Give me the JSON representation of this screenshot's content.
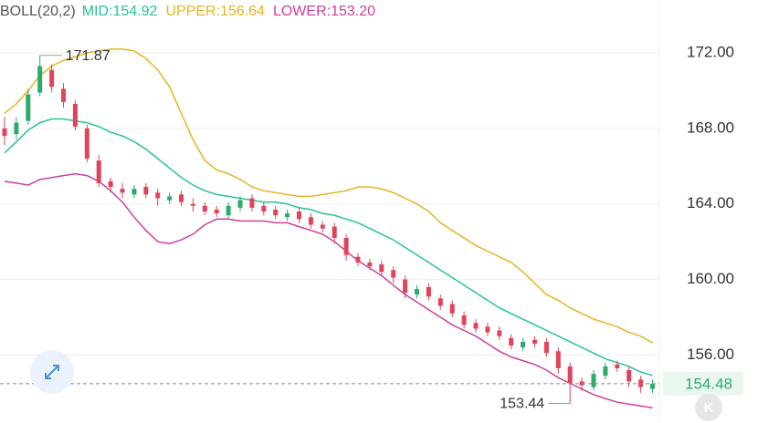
{
  "chart_data": {
    "type": "candlestick",
    "indicator": "BOLL(20,2)",
    "open": [
      168.0,
      167.7,
      168.4,
      169.9,
      171.1,
      170.1,
      169.3,
      168.0,
      166.3,
      165.2,
      164.8,
      164.5,
      164.9,
      164.6,
      164.2,
      164.5,
      164.0,
      163.9,
      163.7,
      163.4,
      163.8,
      164.3,
      163.9,
      163.7,
      163.3,
      163.6,
      163.3,
      162.9,
      162.8,
      162.2,
      161.2,
      160.9,
      160.8,
      160.5,
      160.0,
      159.2,
      159.6,
      159.0,
      158.7,
      158.1,
      157.7,
      157.5,
      157.3,
      156.9,
      156.4,
      156.8,
      156.7,
      156.2,
      155.4,
      154.6,
      154.3,
      154.9,
      155.5,
      155.2,
      154.7,
      154.2
    ],
    "high": [
      168.6,
      168.6,
      170.1,
      171.87,
      171.4,
      170.4,
      169.5,
      168.2,
      166.6,
      165.4,
      165.1,
      165.0,
      165.1,
      164.8,
      164.6,
      164.7,
      164.3,
      164.1,
      163.9,
      164.1,
      164.4,
      164.5,
      164.1,
      163.9,
      163.7,
      163.8,
      163.5,
      163.1,
      163.0,
      162.4,
      161.4,
      161.1,
      161.0,
      160.7,
      160.2,
      159.7,
      159.8,
      159.2,
      158.9,
      158.3,
      157.9,
      157.7,
      157.5,
      157.1,
      156.9,
      157.0,
      156.9,
      156.4,
      155.6,
      154.8,
      155.2,
      155.6,
      155.7,
      155.4,
      154.9,
      154.7
    ],
    "low": [
      167.1,
      167.4,
      168.2,
      169.7,
      169.9,
      169.1,
      167.9,
      166.2,
      164.9,
      164.6,
      164.3,
      164.3,
      164.3,
      163.9,
      164.0,
      163.9,
      163.6,
      163.4,
      163.3,
      163.2,
      163.6,
      163.6,
      163.4,
      163.2,
      163.1,
      163.0,
      162.7,
      162.5,
      161.9,
      161.0,
      160.7,
      160.5,
      160.2,
      159.8,
      159.0,
      159.0,
      158.9,
      158.4,
      158.0,
      157.4,
      157.2,
      157.0,
      156.8,
      156.3,
      156.2,
      156.4,
      155.9,
      155.0,
      153.44,
      154.1,
      154.1,
      154.7,
      155.1,
      154.3,
      154.0,
      154.0
    ],
    "close": [
      167.6,
      168.3,
      169.8,
      171.3,
      170.2,
      169.4,
      168.1,
      166.4,
      165.1,
      164.9,
      164.6,
      164.8,
      164.5,
      164.3,
      164.4,
      164.1,
      163.9,
      163.6,
      163.5,
      163.9,
      164.2,
      163.8,
      163.6,
      163.4,
      163.5,
      163.2,
      162.9,
      162.7,
      162.2,
      161.3,
      160.9,
      160.7,
      160.4,
      160.1,
      159.3,
      159.5,
      159.1,
      158.6,
      158.2,
      157.6,
      157.4,
      157.2,
      157.0,
      156.5,
      156.7,
      156.6,
      156.1,
      155.3,
      154.5,
      154.4,
      155.0,
      155.4,
      155.3,
      154.6,
      154.3,
      154.48
    ],
    "up_color": "#2eaa6a",
    "down_color": "#e0435a",
    "series": [
      {
        "name": "MID:154.92",
        "color": "#27c29c",
        "values": [
          166.7,
          167.3,
          167.9,
          168.3,
          168.5,
          168.5,
          168.4,
          168.3,
          168.1,
          167.8,
          167.6,
          167.3,
          166.9,
          166.4,
          165.9,
          165.4,
          165.0,
          164.7,
          164.5,
          164.4,
          164.3,
          164.2,
          164.1,
          164.1,
          164.0,
          163.8,
          163.7,
          163.5,
          163.4,
          163.2,
          163.0,
          162.7,
          162.4,
          162.1,
          161.7,
          161.3,
          160.9,
          160.5,
          160.1,
          159.7,
          159.3,
          158.9,
          158.5,
          158.2,
          157.9,
          157.6,
          157.3,
          157.0,
          156.7,
          156.4,
          156.1,
          155.8,
          155.6,
          155.4,
          155.1,
          154.92
        ]
      },
      {
        "name": "UPPER:156.64",
        "color": "#e6b422",
        "values": [
          168.8,
          169.3,
          170.0,
          170.8,
          171.3,
          171.6,
          171.8,
          172.0,
          172.1,
          172.2,
          172.2,
          172.1,
          171.7,
          171.1,
          170.2,
          168.8,
          167.4,
          166.3,
          165.8,
          165.6,
          165.3,
          164.9,
          164.7,
          164.6,
          164.5,
          164.4,
          164.4,
          164.5,
          164.6,
          164.7,
          164.9,
          164.9,
          164.8,
          164.6,
          164.3,
          164.0,
          163.6,
          163.0,
          162.6,
          162.2,
          161.8,
          161.5,
          161.2,
          160.9,
          160.4,
          159.8,
          159.2,
          158.9,
          158.5,
          158.2,
          157.9,
          157.7,
          157.5,
          157.2,
          157.0,
          156.64
        ]
      },
      {
        "name": "LOWER:153.20",
        "color": "#cc3fa0",
        "values": [
          165.2,
          165.1,
          165.0,
          165.3,
          165.4,
          165.5,
          165.6,
          165.5,
          165.2,
          164.7,
          164.1,
          163.3,
          162.6,
          162.0,
          161.9,
          162.1,
          162.4,
          162.9,
          163.2,
          163.2,
          163.1,
          163.1,
          163.1,
          163.0,
          163.0,
          162.8,
          162.6,
          162.4,
          162.0,
          161.5,
          161.0,
          160.6,
          160.2,
          159.7,
          159.2,
          158.8,
          158.4,
          158.0,
          157.6,
          157.3,
          157.0,
          156.6,
          156.2,
          155.9,
          155.7,
          155.5,
          155.2,
          154.8,
          154.5,
          154.2,
          153.9,
          153.7,
          153.5,
          153.4,
          153.3,
          153.2
        ]
      }
    ],
    "ylim": [
      152.4,
      174.8
    ],
    "yticks": [
      {
        "value": 172,
        "label": "172.00"
      },
      {
        "value": 168,
        "label": "168.00"
      },
      {
        "value": 164,
        "label": "164.00"
      },
      {
        "value": 160,
        "label": "160.00"
      },
      {
        "value": 156,
        "label": "156.00"
      }
    ],
    "grid": true,
    "last_price": 154.48,
    "high_label": 171.87,
    "low_label": 153.44
  },
  "ui": {
    "kline_button": "K"
  }
}
